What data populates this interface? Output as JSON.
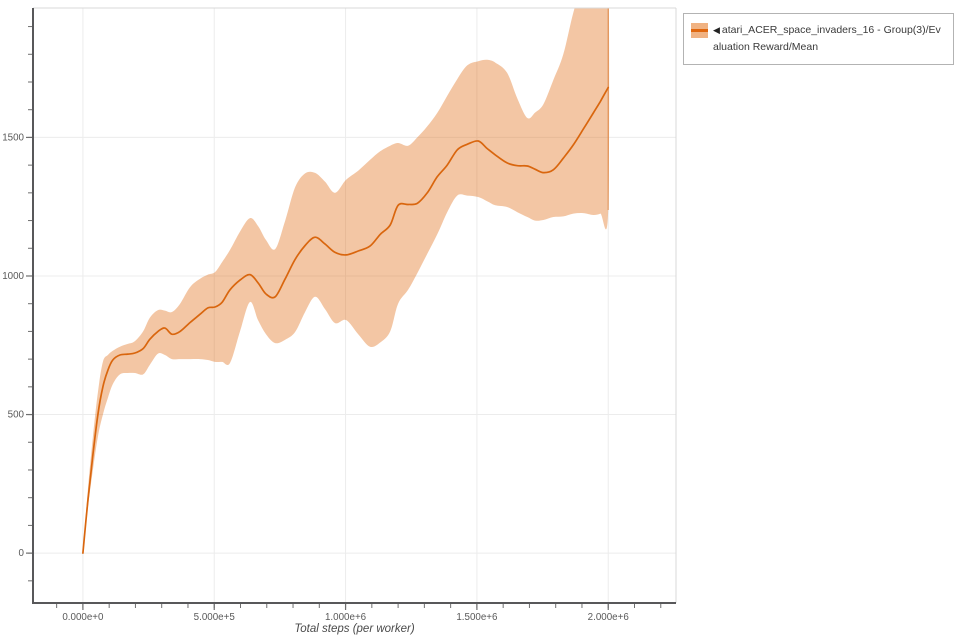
{
  "page": {
    "background": "#ffffff"
  },
  "legend": {
    "marker": "◀",
    "label": "atari_ACER_space_invaders_16 - Group(3)/Evaluation Reward/Mean",
    "swatch_fill": "#f0b282",
    "swatch_line": "#e0670e",
    "border_color": "#b3b3b3"
  },
  "chart_data": {
    "type": "line",
    "title": "",
    "xlabel": "Total steps (per worker)",
    "ylabel": "",
    "legend_position": "top-right",
    "grid": "major-only",
    "x_range": [
      -190000,
      2258000
    ],
    "y_range": [
      -180,
      1967
    ],
    "x_minor_step": 100000,
    "y_minor_step": 100,
    "x_ticks": [
      {
        "v": 0,
        "label": "0.000e+0"
      },
      {
        "v": 500000,
        "label": "5.000e+5"
      },
      {
        "v": 1000000,
        "label": "1.000e+6"
      },
      {
        "v": 1500000,
        "label": "1.500e+6"
      },
      {
        "v": 2000000,
        "label": "2.000e+6"
      }
    ],
    "y_ticks": [
      {
        "v": 0,
        "label": "0"
      },
      {
        "v": 500,
        "label": "500"
      },
      {
        "v": 1000,
        "label": "1000"
      },
      {
        "v": 1500,
        "label": "1500"
      }
    ],
    "colors": {
      "line": "#d9660e",
      "band": "rgba(224,106,16,0.38)",
      "band_edge": "rgba(217,102,14,0.5)",
      "grid": "#ececec",
      "spine_dark": "#58585a",
      "spine_light": "#d8d8d8",
      "tick": "#6e6e6e",
      "tick_label": "#595959"
    },
    "series": [
      {
        "name": "atari_ACER_space_invaders_16 - Group(3)/Evaluation Reward/Mean",
        "steps": [
          0,
          19000,
          38000,
          57000,
          76000,
          95000,
          114000,
          141000,
          171000,
          198000,
          229000,
          255000,
          286000,
          312000,
          339000,
          370000,
          408000,
          446000,
          476000,
          503000,
          530000,
          560000,
          598000,
          636000,
          667000,
          697000,
          732000,
          770000,
          808000,
          846000,
          884000,
          922000,
          960000,
          1002000,
          1048000,
          1093000,
          1132000,
          1170000,
          1200000,
          1238000,
          1273000,
          1311000,
          1349000,
          1387000,
          1425000,
          1463000,
          1505000,
          1539000,
          1570000,
          1615000,
          1654000,
          1692000,
          1722000,
          1753000,
          1791000,
          1829000,
          1867000,
          1905000,
          1943000,
          1970000,
          2000000
        ],
        "mean": [
          0,
          190,
          355,
          500,
          600,
          660,
          697,
          715,
          718,
          722,
          738,
          772,
          800,
          812,
          790,
          800,
          832,
          862,
          885,
          888,
          905,
          950,
          985,
          1005,
          975,
          935,
          925,
          990,
          1060,
          1110,
          1140,
          1115,
          1085,
          1076,
          1090,
          1108,
          1150,
          1184,
          1255,
          1258,
          1262,
          1300,
          1358,
          1400,
          1455,
          1475,
          1487,
          1460,
          1437,
          1408,
          1398,
          1397,
          1385,
          1373,
          1383,
          1425,
          1473,
          1530,
          1588,
          1630,
          1680
        ],
        "lower": [
          0,
          165,
          300,
          420,
          500,
          560,
          610,
          645,
          650,
          650,
          645,
          680,
          720,
          715,
          700,
          700,
          700,
          700,
          697,
          690,
          690,
          686,
          800,
          906,
          840,
          790,
          758,
          770,
          798,
          870,
          925,
          880,
          830,
          841,
          790,
          745,
          760,
          800,
          900,
          950,
          1010,
          1080,
          1150,
          1230,
          1290,
          1290,
          1285,
          1270,
          1255,
          1249,
          1230,
          1213,
          1200,
          1202,
          1213,
          1215,
          1225,
          1227,
          1220,
          1225,
          1238
        ],
        "upper": [
          0,
          230,
          420,
          580,
          690,
          715,
          730,
          745,
          755,
          765,
          800,
          850,
          877,
          875,
          870,
          900,
          960,
          990,
          1005,
          1014,
          1050,
          1094,
          1160,
          1209,
          1180,
          1130,
          1097,
          1200,
          1320,
          1370,
          1372,
          1340,
          1300,
          1347,
          1380,
          1419,
          1450,
          1470,
          1480,
          1470,
          1500,
          1540,
          1588,
          1650,
          1710,
          1760,
          1775,
          1780,
          1770,
          1733,
          1640,
          1570,
          1590,
          1620,
          1707,
          1800,
          1950,
          2060,
          2090,
          2110,
          2130
        ]
      }
    ]
  }
}
